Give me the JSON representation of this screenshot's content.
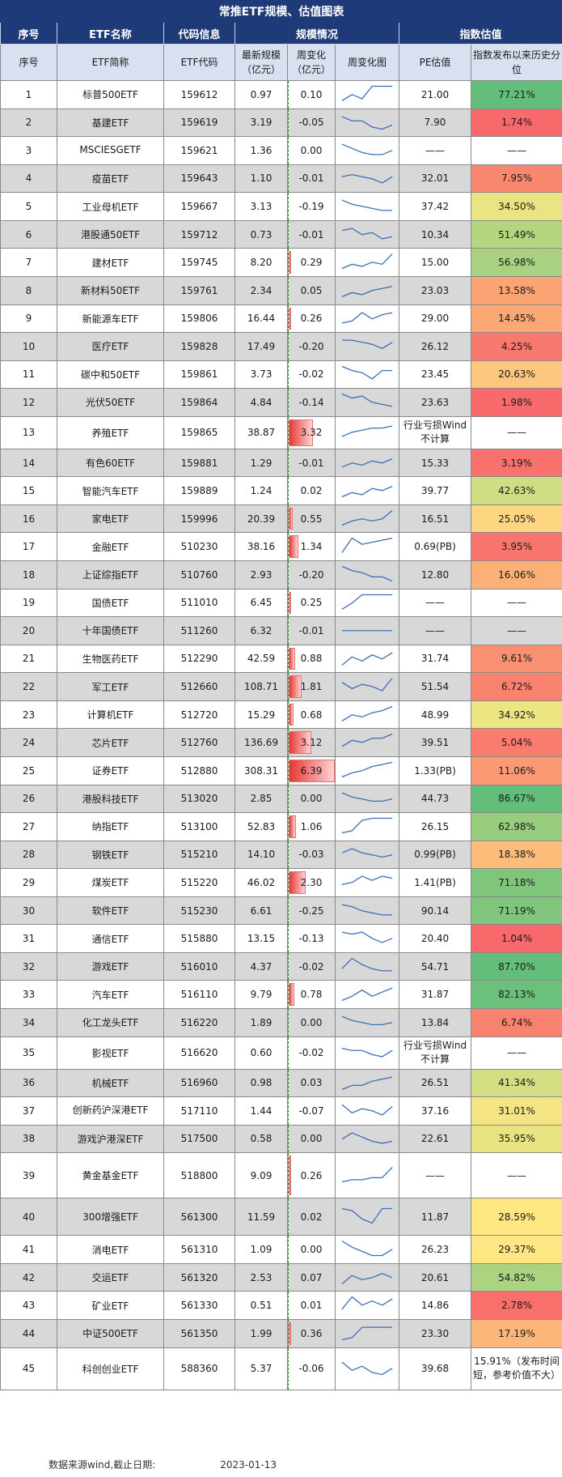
{
  "title": "常推ETF规模、估值图表",
  "groups": [
    "序号",
    "ETF名称",
    "代码信息",
    "规模情况",
    "指数估值"
  ],
  "headers": [
    "序号",
    "ETF简称",
    "ETF代码",
    "最新规模（亿元）",
    "周变化（亿元）",
    "周变化图",
    "PE估值",
    "指数发布以来历史分位"
  ],
  "rows": [
    {
      "no": "1",
      "name": "标普500ETF",
      "code": "159612",
      "size": "0.97",
      "chg": "0.10",
      "pe": "21.00",
      "pct": "77.21%",
      "pct_color": "#63be7b",
      "spark": [
        2,
        5,
        3,
        9,
        9,
        9
      ]
    },
    {
      "no": "2",
      "name": "基建ETF",
      "code": "159619",
      "size": "3.19",
      "chg": "-0.05",
      "pe": "7.90",
      "pct": "1.74%",
      "pct_color": "#f8696b",
      "spark": [
        8,
        6,
        6,
        3,
        2,
        4
      ]
    },
    {
      "no": "3",
      "name": "MSCIESGETF",
      "code": "159621",
      "size": "1.36",
      "chg": "0.00",
      "pe": "——",
      "pct": "——",
      "pct_color": "",
      "spark": [
        8,
        6,
        4,
        3,
        3,
        5
      ]
    },
    {
      "no": "4",
      "name": "疫苗ETF",
      "code": "159643",
      "size": "1.10",
      "chg": "-0.01",
      "pe": "32.01",
      "pct": "7.95%",
      "pct_color": "#f98870",
      "spark": [
        6,
        7,
        6,
        5,
        3,
        6
      ]
    },
    {
      "no": "5",
      "name": "工业母机ETF",
      "code": "159667",
      "size": "3.13",
      "chg": "-0.19",
      "pe": "37.42",
      "pct": "34.50%",
      "pct_color": "#ebe482",
      "spark": [
        8,
        6,
        5,
        4,
        3,
        3
      ]
    },
    {
      "no": "6",
      "name": "港股通50ETF",
      "code": "159712",
      "size": "0.73",
      "chg": "-0.01",
      "pe": "10.34",
      "pct": "51.49%",
      "pct_color": "#b5d680",
      "spark": [
        7,
        8,
        5,
        6,
        3,
        4
      ]
    },
    {
      "no": "7",
      "name": "建材ETF",
      "code": "159745",
      "size": "8.20",
      "chg": "0.29",
      "pe": "15.00",
      "pct": "56.98%",
      "pct_color": "#a8d27f",
      "spark": [
        2,
        4,
        3,
        5,
        4,
        9
      ]
    },
    {
      "no": "8",
      "name": "新材料50ETF",
      "code": "159761",
      "size": "2.34",
      "chg": "0.05",
      "pe": "23.03",
      "pct": "13.58%",
      "pct_color": "#fba474",
      "spark": [
        2,
        4,
        3,
        5,
        6,
        7
      ]
    },
    {
      "no": "9",
      "name": "新能源车ETF",
      "code": "159806",
      "size": "16.44",
      "chg": "0.26",
      "pe": "29.00",
      "pct": "14.45%",
      "pct_color": "#fba875",
      "spark": [
        3,
        4,
        8,
        5,
        7,
        8
      ]
    },
    {
      "no": "10",
      "name": "医疗ETF",
      "code": "159828",
      "size": "17.49",
      "chg": "-0.20",
      "pe": "26.12",
      "pct": "4.25%",
      "pct_color": "#f8796d",
      "spark": [
        8,
        8,
        7,
        6,
        4,
        7
      ]
    },
    {
      "no": "11",
      "name": "碳中和50ETF",
      "code": "159861",
      "size": "3.73",
      "chg": "-0.02",
      "pe": "23.45",
      "pct": "20.63%",
      "pct_color": "#fdc67c",
      "spark": [
        9,
        7,
        6,
        3,
        7,
        7
      ]
    },
    {
      "no": "12",
      "name": "光伏50ETF",
      "code": "159864",
      "size": "4.84",
      "chg": "-0.14",
      "pe": "23.63",
      "pct": "1.98%",
      "pct_color": "#f86a6b",
      "spark": [
        9,
        7,
        8,
        5,
        4,
        3
      ]
    },
    {
      "no": "13",
      "name": "养殖ETF",
      "code": "159865",
      "size": "38.87",
      "chg": "3.32",
      "pe": "行业亏损Wind不计算",
      "pct": "——",
      "pct_color": "",
      "spark": [
        3,
        5,
        6,
        7,
        7,
        8
      ]
    },
    {
      "no": "14",
      "name": "有色60ETF",
      "code": "159881",
      "size": "1.29",
      "chg": "-0.01",
      "pe": "15.33",
      "pct": "3.19%",
      "pct_color": "#f8716c",
      "spark": [
        3,
        5,
        4,
        6,
        5,
        7
      ]
    },
    {
      "no": "15",
      "name": "智能汽车ETF",
      "code": "159889",
      "size": "1.24",
      "chg": "0.02",
      "pe": "39.77",
      "pct": "42.63%",
      "pct_color": "#d0dd82",
      "spark": [
        2,
        4,
        3,
        6,
        5,
        7
      ]
    },
    {
      "no": "16",
      "name": "家电ETF",
      "code": "159996",
      "size": "20.39",
      "chg": "0.55",
      "pe": "16.51",
      "pct": "25.05%",
      "pct_color": "#fed580",
      "spark": [
        2,
        4,
        5,
        4,
        5,
        9
      ]
    },
    {
      "no": "17",
      "name": "金融ETF",
      "code": "510230",
      "size": "38.16",
      "chg": "1.34",
      "pe": "0.69(PB)",
      "pct": "3.95%",
      "pct_color": "#f8766d",
      "spark": [
        2,
        9,
        6,
        7,
        8,
        9
      ]
    },
    {
      "no": "18",
      "name": "上证综指ETF",
      "code": "510760",
      "size": "2.93",
      "chg": "-0.20",
      "pe": "12.80",
      "pct": "16.06%",
      "pct_color": "#fcb077",
      "spark": [
        9,
        7,
        6,
        4,
        4,
        2
      ]
    },
    {
      "no": "19",
      "name": "国债ETF",
      "code": "511010",
      "size": "6.45",
      "chg": "0.25",
      "pe": "——",
      "pct": "——",
      "pct_color": "",
      "spark": [
        2,
        5,
        9,
        9,
        9,
        9
      ]
    },
    {
      "no": "20",
      "name": "十年国债ETF",
      "code": "511260",
      "size": "6.32",
      "chg": "-0.01",
      "pe": "——",
      "pct": "——",
      "pct_color": "",
      "spark": [
        5,
        5,
        5,
        5,
        5,
        5
      ]
    },
    {
      "no": "21",
      "name": "生物医药ETF",
      "code": "512290",
      "size": "42.59",
      "chg": "0.88",
      "pe": "31.74",
      "pct": "9.61%",
      "pct_color": "#f99071",
      "spark": [
        2,
        6,
        4,
        7,
        5,
        8
      ]
    },
    {
      "no": "22",
      "name": "军工ETF",
      "code": "512660",
      "size": "108.71",
      "chg": "1.81",
      "pe": "51.54",
      "pct": "6.72%",
      "pct_color": "#f9826f",
      "spark": [
        7,
        4,
        6,
        5,
        3,
        9
      ]
    },
    {
      "no": "23",
      "name": "计算机ETF",
      "code": "512720",
      "size": "15.29",
      "chg": "0.68",
      "pe": "48.99",
      "pct": "34.92%",
      "pct_color": "#ebe582",
      "spark": [
        2,
        5,
        4,
        6,
        7,
        9
      ]
    },
    {
      "no": "24",
      "name": "芯片ETF",
      "code": "512760",
      "size": "136.69",
      "chg": "3.12",
      "pe": "39.51",
      "pct": "5.04%",
      "pct_color": "#f97c6e",
      "spark": [
        3,
        6,
        5,
        7,
        7,
        9
      ]
    },
    {
      "no": "25",
      "name": "证券ETF",
      "code": "512880",
      "size": "308.31",
      "chg": "6.39",
      "pe": "1.33(PB)",
      "pct": "11.06%",
      "pct_color": "#fa9973",
      "spark": [
        2,
        4,
        5,
        7,
        8,
        9
      ]
    },
    {
      "no": "26",
      "name": "港股科技ETF",
      "code": "513020",
      "size": "2.85",
      "chg": "0.00",
      "pe": "44.73",
      "pct": "86.67%",
      "pct_color": "#63be7b",
      "spark": [
        8,
        6,
        5,
        4,
        4,
        5
      ]
    },
    {
      "no": "27",
      "name": "纳指ETF",
      "code": "513100",
      "size": "52.83",
      "chg": "1.06",
      "pe": "26.15",
      "pct": "62.98%",
      "pct_color": "#98cd7e",
      "spark": [
        2,
        3,
        8,
        9,
        9,
        9
      ]
    },
    {
      "no": "28",
      "name": "钢铁ETF",
      "code": "515210",
      "size": "14.10",
      "chg": "-0.03",
      "pe": "0.99(PB)",
      "pct": "18.38%",
      "pct_color": "#fdbc7a",
      "spark": [
        6,
        8,
        6,
        5,
        4,
        5
      ]
    },
    {
      "no": "29",
      "name": "煤炭ETF",
      "code": "515220",
      "size": "46.02",
      "chg": "2.30",
      "pe": "1.41(PB)",
      "pct": "71.18%",
      "pct_color": "#7fc67c",
      "spark": [
        4,
        5,
        8,
        6,
        8,
        7
      ]
    },
    {
      "no": "30",
      "name": "软件ETF",
      "code": "515230",
      "size": "6.61",
      "chg": "-0.25",
      "pe": "90.14",
      "pct": "71.19%",
      "pct_color": "#7fc67c",
      "spark": [
        8,
        7,
        5,
        4,
        3,
        3
      ]
    },
    {
      "no": "31",
      "name": "通信ETF",
      "code": "515880",
      "size": "13.15",
      "chg": "-0.13",
      "pe": "20.40",
      "pct": "1.04%",
      "pct_color": "#f8696b",
      "spark": [
        8,
        7,
        8,
        5,
        3,
        5
      ]
    },
    {
      "no": "32",
      "name": "游戏ETF",
      "code": "516010",
      "size": "4.37",
      "chg": "-0.02",
      "pe": "54.71",
      "pct": "87.70%",
      "pct_color": "#63be7b",
      "spark": [
        4,
        9,
        6,
        4,
        3,
        3
      ]
    },
    {
      "no": "33",
      "name": "汽车ETF",
      "code": "516110",
      "size": "9.79",
      "chg": "0.78",
      "pe": "31.87",
      "pct": "82.13%",
      "pct_color": "#6bc17b",
      "spark": [
        2,
        4,
        7,
        4,
        6,
        8
      ]
    },
    {
      "no": "34",
      "name": "化工龙头ETF",
      "code": "516220",
      "size": "1.89",
      "chg": "0.00",
      "pe": "13.84",
      "pct": "6.74%",
      "pct_color": "#f9826f",
      "spark": [
        8,
        6,
        5,
        4,
        4,
        5
      ]
    },
    {
      "no": "35",
      "name": "影视ETF",
      "code": "516620",
      "size": "0.60",
      "chg": "-0.02",
      "pe": "行业亏损Wind不计算",
      "pct": "——",
      "pct_color": "",
      "spark": [
        7,
        6,
        6,
        4,
        3,
        6
      ]
    },
    {
      "no": "36",
      "name": "机械ETF",
      "code": "516960",
      "size": "0.98",
      "chg": "0.03",
      "pe": "26.51",
      "pct": "41.34%",
      "pct_color": "#d3de82",
      "spark": [
        2,
        4,
        4,
        6,
        7,
        8
      ]
    },
    {
      "no": "37",
      "name": "创新药沪深港ETF",
      "code": "517110",
      "size": "1.44",
      "chg": "-0.07",
      "pe": "37.16",
      "pct": "31.01%",
      "pct_color": "#f5e483",
      "spark": [
        8,
        4,
        6,
        5,
        3,
        7
      ]
    },
    {
      "no": "38",
      "name": "游戏沪港深ETF",
      "code": "517500",
      "size": "0.58",
      "chg": "0.00",
      "pe": "22.61",
      "pct": "35.95%",
      "pct_color": "#e8e482",
      "spark": [
        5,
        8,
        6,
        4,
        3,
        4
      ]
    },
    {
      "no": "39",
      "name": "黄金基金ETF",
      "code": "518800",
      "size": "9.09",
      "chg": "0.26",
      "pe": "——",
      "pct": "——",
      "pct_color": "",
      "spark": [
        2,
        3,
        3,
        4,
        4,
        9
      ]
    },
    {
      "no": "40",
      "name": "300增强ETF",
      "code": "561300",
      "size": "11.59",
      "chg": "0.02",
      "pe": "11.87",
      "pct": "28.59%",
      "pct_color": "#fee683",
      "spark": [
        9,
        8,
        4,
        2,
        9,
        9
      ]
    },
    {
      "no": "41",
      "name": "消电ETF",
      "code": "561310",
      "size": "1.09",
      "chg": "0.00",
      "pe": "26.23",
      "pct": "29.37%",
      "pct_color": "#fee683",
      "spark": [
        9,
        6,
        4,
        2,
        2,
        5
      ]
    },
    {
      "no": "42",
      "name": "交运ETF",
      "code": "561320",
      "size": "2.53",
      "chg": "0.07",
      "pe": "20.61",
      "pct": "54.82%",
      "pct_color": "#acd37f",
      "spark": [
        2,
        6,
        4,
        5,
        7,
        5
      ]
    },
    {
      "no": "43",
      "name": "矿业ETF",
      "code": "561330",
      "size": "0.51",
      "chg": "0.01",
      "pe": "14.86",
      "pct": "2.78%",
      "pct_color": "#f86f6c",
      "spark": [
        3,
        9,
        5,
        7,
        5,
        8
      ]
    },
    {
      "no": "44",
      "name": "中证500ETF",
      "code": "561350",
      "size": "1.99",
      "chg": "0.36",
      "pe": "23.30",
      "pct": "17.19%",
      "pct_color": "#fcb679",
      "spark": [
        2,
        3,
        8,
        8,
        8,
        8
      ]
    },
    {
      "no": "45",
      "name": "科创创业ETF",
      "code": "588360",
      "size": "5.37",
      "chg": "-0.06",
      "pe": "39.68",
      "pct": "15.91%（发布时间短，参考价值不大）",
      "pct_color": "",
      "spark": [
        8,
        4,
        6,
        3,
        2,
        5
      ]
    }
  ],
  "footer": {
    "source": "数据来源wind,截止日期:",
    "date": "2023-01-13"
  },
  "colors": {
    "header_bg": "#1f3a78",
    "subheader_bg": "#d9e0f0",
    "row_alt": "#d8d8d8",
    "bar_up": "#e53935",
    "bar_down": "#2e7d32",
    "spark_line": "#3a6fb4"
  }
}
